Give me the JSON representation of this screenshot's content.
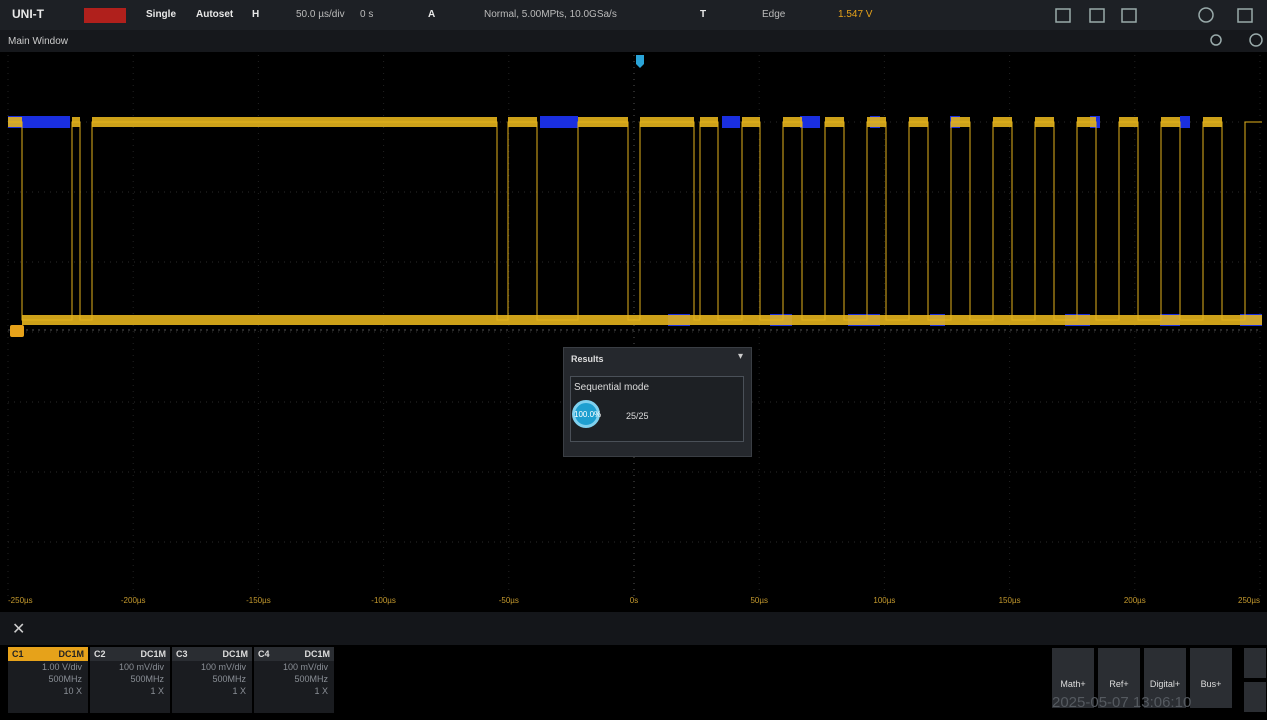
{
  "toolbar": {
    "brand": "UNI-T",
    "single": "Single",
    "autoset": "Autoset",
    "horizontal": "H",
    "timebase": "50.0 µs/div",
    "offset": "0 s",
    "acquire": "A",
    "acquire_mode": "Normal, 5.00MPts, 10.0GSa/s",
    "trigger": "T",
    "trigger_type": "Edge",
    "trigger_level": "1.547 V"
  },
  "window_title": "Main Window",
  "time_labels": [
    "-250µs",
    "-200µs",
    "-150µs",
    "-100µs",
    "-50µs",
    "0s",
    "50µs",
    "100µs",
    "150µs",
    "200µs",
    "250µs"
  ],
  "results": {
    "title": "Results",
    "mode": "Sequential mode",
    "percent": "100.0%",
    "count": "25/25"
  },
  "channels": [
    {
      "name": "C1",
      "coupling": "DC1M",
      "scale": "1.00 V/div",
      "bandwidth": "500MHz",
      "probe": "10 X"
    },
    {
      "name": "C2",
      "coupling": "DC1M",
      "scale": "100 mV/div",
      "bandwidth": "500MHz",
      "probe": "1 X"
    },
    {
      "name": "C3",
      "coupling": "DC1M",
      "scale": "100 mV/div",
      "bandwidth": "500MHz",
      "probe": "1 X"
    },
    {
      "name": "C4",
      "coupling": "DC1M",
      "scale": "100 mV/div",
      "bandwidth": "500MHz",
      "probe": "1 X"
    }
  ],
  "buttons": [
    "Math+",
    "Ref+",
    "Digital+",
    "Bus+"
  ],
  "datetime": "2025-05-07 13:06:10"
}
